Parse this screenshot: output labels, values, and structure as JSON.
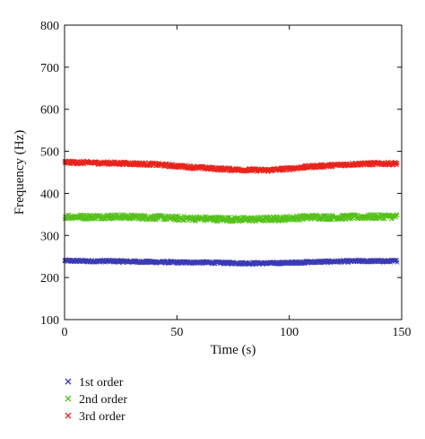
{
  "chart_data": {
    "type": "scatter",
    "xlabel": "Time (s)",
    "ylabel": "Frequency (Hz)",
    "xlim": [
      0,
      150
    ],
    "ylim": [
      100,
      800
    ],
    "xticks": [
      0,
      50,
      100,
      150
    ],
    "yticks": [
      100,
      200,
      300,
      400,
      500,
      600,
      700,
      800
    ],
    "grid": false,
    "legend_position": "bottom-left",
    "marker": "x",
    "series": [
      {
        "name": "1st order",
        "color": "#3b3bb5",
        "x": [
          0,
          10,
          20,
          30,
          40,
          50,
          60,
          70,
          80,
          90,
          100,
          110,
          120,
          130,
          140,
          148
        ],
        "y": [
          240,
          239,
          239,
          238,
          237,
          236,
          236,
          235,
          234,
          234,
          235,
          237,
          238,
          239,
          239,
          239
        ],
        "spread": 3
      },
      {
        "name": "2nd order",
        "color": "#55c21a",
        "x": [
          0,
          10,
          20,
          30,
          40,
          50,
          60,
          70,
          80,
          90,
          100,
          110,
          120,
          130,
          140,
          148
        ],
        "y": [
          345,
          344,
          345,
          344,
          343,
          341,
          340,
          339,
          338,
          339,
          341,
          344,
          343,
          344,
          345,
          345
        ],
        "spread": 6
      },
      {
        "name": "3rd order",
        "color": "#e8241c",
        "x": [
          0,
          10,
          20,
          30,
          40,
          50,
          60,
          70,
          80,
          90,
          100,
          110,
          120,
          130,
          140,
          148
        ],
        "y": [
          474,
          473,
          472,
          471,
          469,
          465,
          461,
          458,
          456,
          455,
          459,
          464,
          467,
          470,
          471,
          471
        ],
        "spread": 4
      }
    ]
  }
}
